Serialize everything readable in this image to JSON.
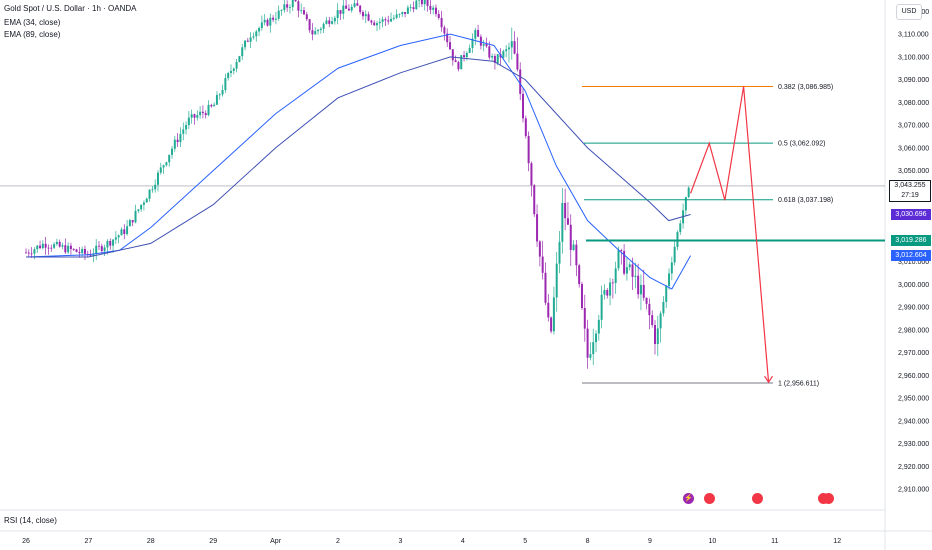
{
  "header": {
    "symbol": "Gold Spot / U.S. Dollar · 1h · OANDA",
    "ema1": "EMA (34, close)",
    "ema2": "EMA (89, close)"
  },
  "currency_button": "USD",
  "rsi_label": "RSI (14, close)",
  "price_tags": [
    {
      "label": "3,043.255",
      "sub": "27:19",
      "price": 3043.255,
      "color": "#ffffff",
      "text": "#131722"
    },
    {
      "label": "3,030.696",
      "price": 3030.696,
      "color": "#5b2bd6",
      "text": "#ffffff"
    },
    {
      "label": "3,019.286",
      "price": 3019.286,
      "color": "#089981",
      "text": "#ffffff"
    },
    {
      "label": "3,012.604",
      "price": 3012.604,
      "color": "#2962ff",
      "text": "#ffffff"
    }
  ],
  "chart_data": {
    "type": "candlestick",
    "ylim": [
      2903,
      3125
    ],
    "y_ticks": [
      2910,
      2920,
      2930,
      2940,
      2950,
      2960,
      2970,
      2980,
      2990,
      3000,
      3010,
      3020,
      3030,
      3040,
      3050,
      3060,
      3070,
      3080,
      3090,
      3100,
      3110,
      3120
    ],
    "y_tick_labels": [
      "2,910.000",
      "2,920.000",
      "2,930.000",
      "2,940.000",
      "2,950.000",
      "2,960.000",
      "2,970.000",
      "2,980.000",
      "2,990.000",
      "3,000.000",
      "3,010.000",
      "3,020.000",
      "3,030.000",
      "3,040.000",
      "3,050.000",
      "3,060.000",
      "3,070.000",
      "3,080.000",
      "3,090.000",
      "3,100.000",
      "3,110.000",
      "3,120.000"
    ],
    "x_ticks": [
      "26",
      "27",
      "28",
      "29",
      "Apr",
      "2",
      "3",
      "4",
      "5",
      "8",
      "9",
      "10",
      "11",
      "12"
    ],
    "x_tick_positions": [
      0,
      1,
      2,
      3,
      4,
      5,
      6,
      7,
      8,
      9,
      10,
      11,
      12,
      13
    ],
    "price_path": [
      [
        0,
        3014
      ],
      [
        0.3,
        3018
      ],
      [
        0.6,
        3016
      ],
      [
        1.0,
        3013
      ],
      [
        1.3,
        3018
      ],
      [
        1.6,
        3024
      ],
      [
        2.0,
        3042
      ],
      [
        2.3,
        3058
      ],
      [
        2.6,
        3072
      ],
      [
        3.0,
        3078
      ],
      [
        3.3,
        3095
      ],
      [
        3.6,
        3110
      ],
      [
        4.0,
        3118
      ],
      [
        4.3,
        3125
      ],
      [
        4.6,
        3110
      ],
      [
        5.0,
        3120
      ],
      [
        5.3,
        3122
      ],
      [
        5.6,
        3115
      ],
      [
        6.0,
        3118
      ],
      [
        6.3,
        3125
      ],
      [
        6.6,
        3120
      ],
      [
        6.9,
        3095
      ],
      [
        7.2,
        3110
      ],
      [
        7.5,
        3098
      ],
      [
        7.8,
        3105
      ],
      [
        8.0,
        3070
      ],
      [
        8.2,
        3020
      ],
      [
        8.4,
        2975
      ],
      [
        8.6,
        3035
      ],
      [
        8.8,
        3010
      ],
      [
        9.0,
        2968
      ],
      [
        9.2,
        2990
      ],
      [
        9.5,
        3012
      ],
      [
        9.8,
        3000
      ],
      [
        10.0,
        2985
      ],
      [
        10.1,
        2975
      ],
      [
        10.3,
        3005
      ],
      [
        10.5,
        3030
      ],
      [
        10.65,
        3043.255
      ]
    ],
    "ema34": [
      [
        0,
        3012
      ],
      [
        1,
        3013
      ],
      [
        1.5,
        3015
      ],
      [
        2,
        3025
      ],
      [
        3,
        3050
      ],
      [
        4,
        3075
      ],
      [
        5,
        3095
      ],
      [
        6,
        3105
      ],
      [
        6.8,
        3110
      ],
      [
        7.5,
        3105
      ],
      [
        8,
        3085
      ],
      [
        8.5,
        3052
      ],
      [
        9,
        3028
      ],
      [
        9.5,
        3015
      ],
      [
        10,
        3003
      ],
      [
        10.35,
        2998
      ],
      [
        10.65,
        3012.604
      ]
    ],
    "ema89": [
      [
        0,
        3012
      ],
      [
        1,
        3012
      ],
      [
        2,
        3018
      ],
      [
        3,
        3035
      ],
      [
        4,
        3060
      ],
      [
        5,
        3082
      ],
      [
        6,
        3093
      ],
      [
        6.8,
        3100
      ],
      [
        7.5,
        3098
      ],
      [
        8,
        3090
      ],
      [
        8.5,
        3075
      ],
      [
        9,
        3060
      ],
      [
        9.5,
        3048
      ],
      [
        10,
        3036
      ],
      [
        10.3,
        3028
      ],
      [
        10.65,
        3030.696
      ]
    ],
    "fib_levels": [
      {
        "ratio": "0.382",
        "label": "0.382 (3,086.985)",
        "price": 3086.985,
        "color": "#f57c00"
      },
      {
        "ratio": "0.5",
        "label": "0.5 (3,062.092)",
        "price": 3062.092,
        "color": "#089981"
      },
      {
        "ratio": "0.618",
        "label": "0.618 (3,037.198)",
        "price": 3037.198,
        "color": "#089981"
      },
      {
        "ratio": "1",
        "label": "1 (2,956.611)",
        "price": 2956.611,
        "color": "#787b86"
      }
    ],
    "support_line": {
      "price": 3019.286,
      "x0": 9.1,
      "color": "#089981"
    },
    "projection": {
      "color": "#f23645",
      "points": [
        [
          10.65,
          3040
        ],
        [
          10.95,
          3062
        ],
        [
          11.2,
          3037
        ],
        [
          11.5,
          3087
        ],
        [
          11.9,
          2957
        ]
      ]
    },
    "current_price_line": 3043.255
  }
}
